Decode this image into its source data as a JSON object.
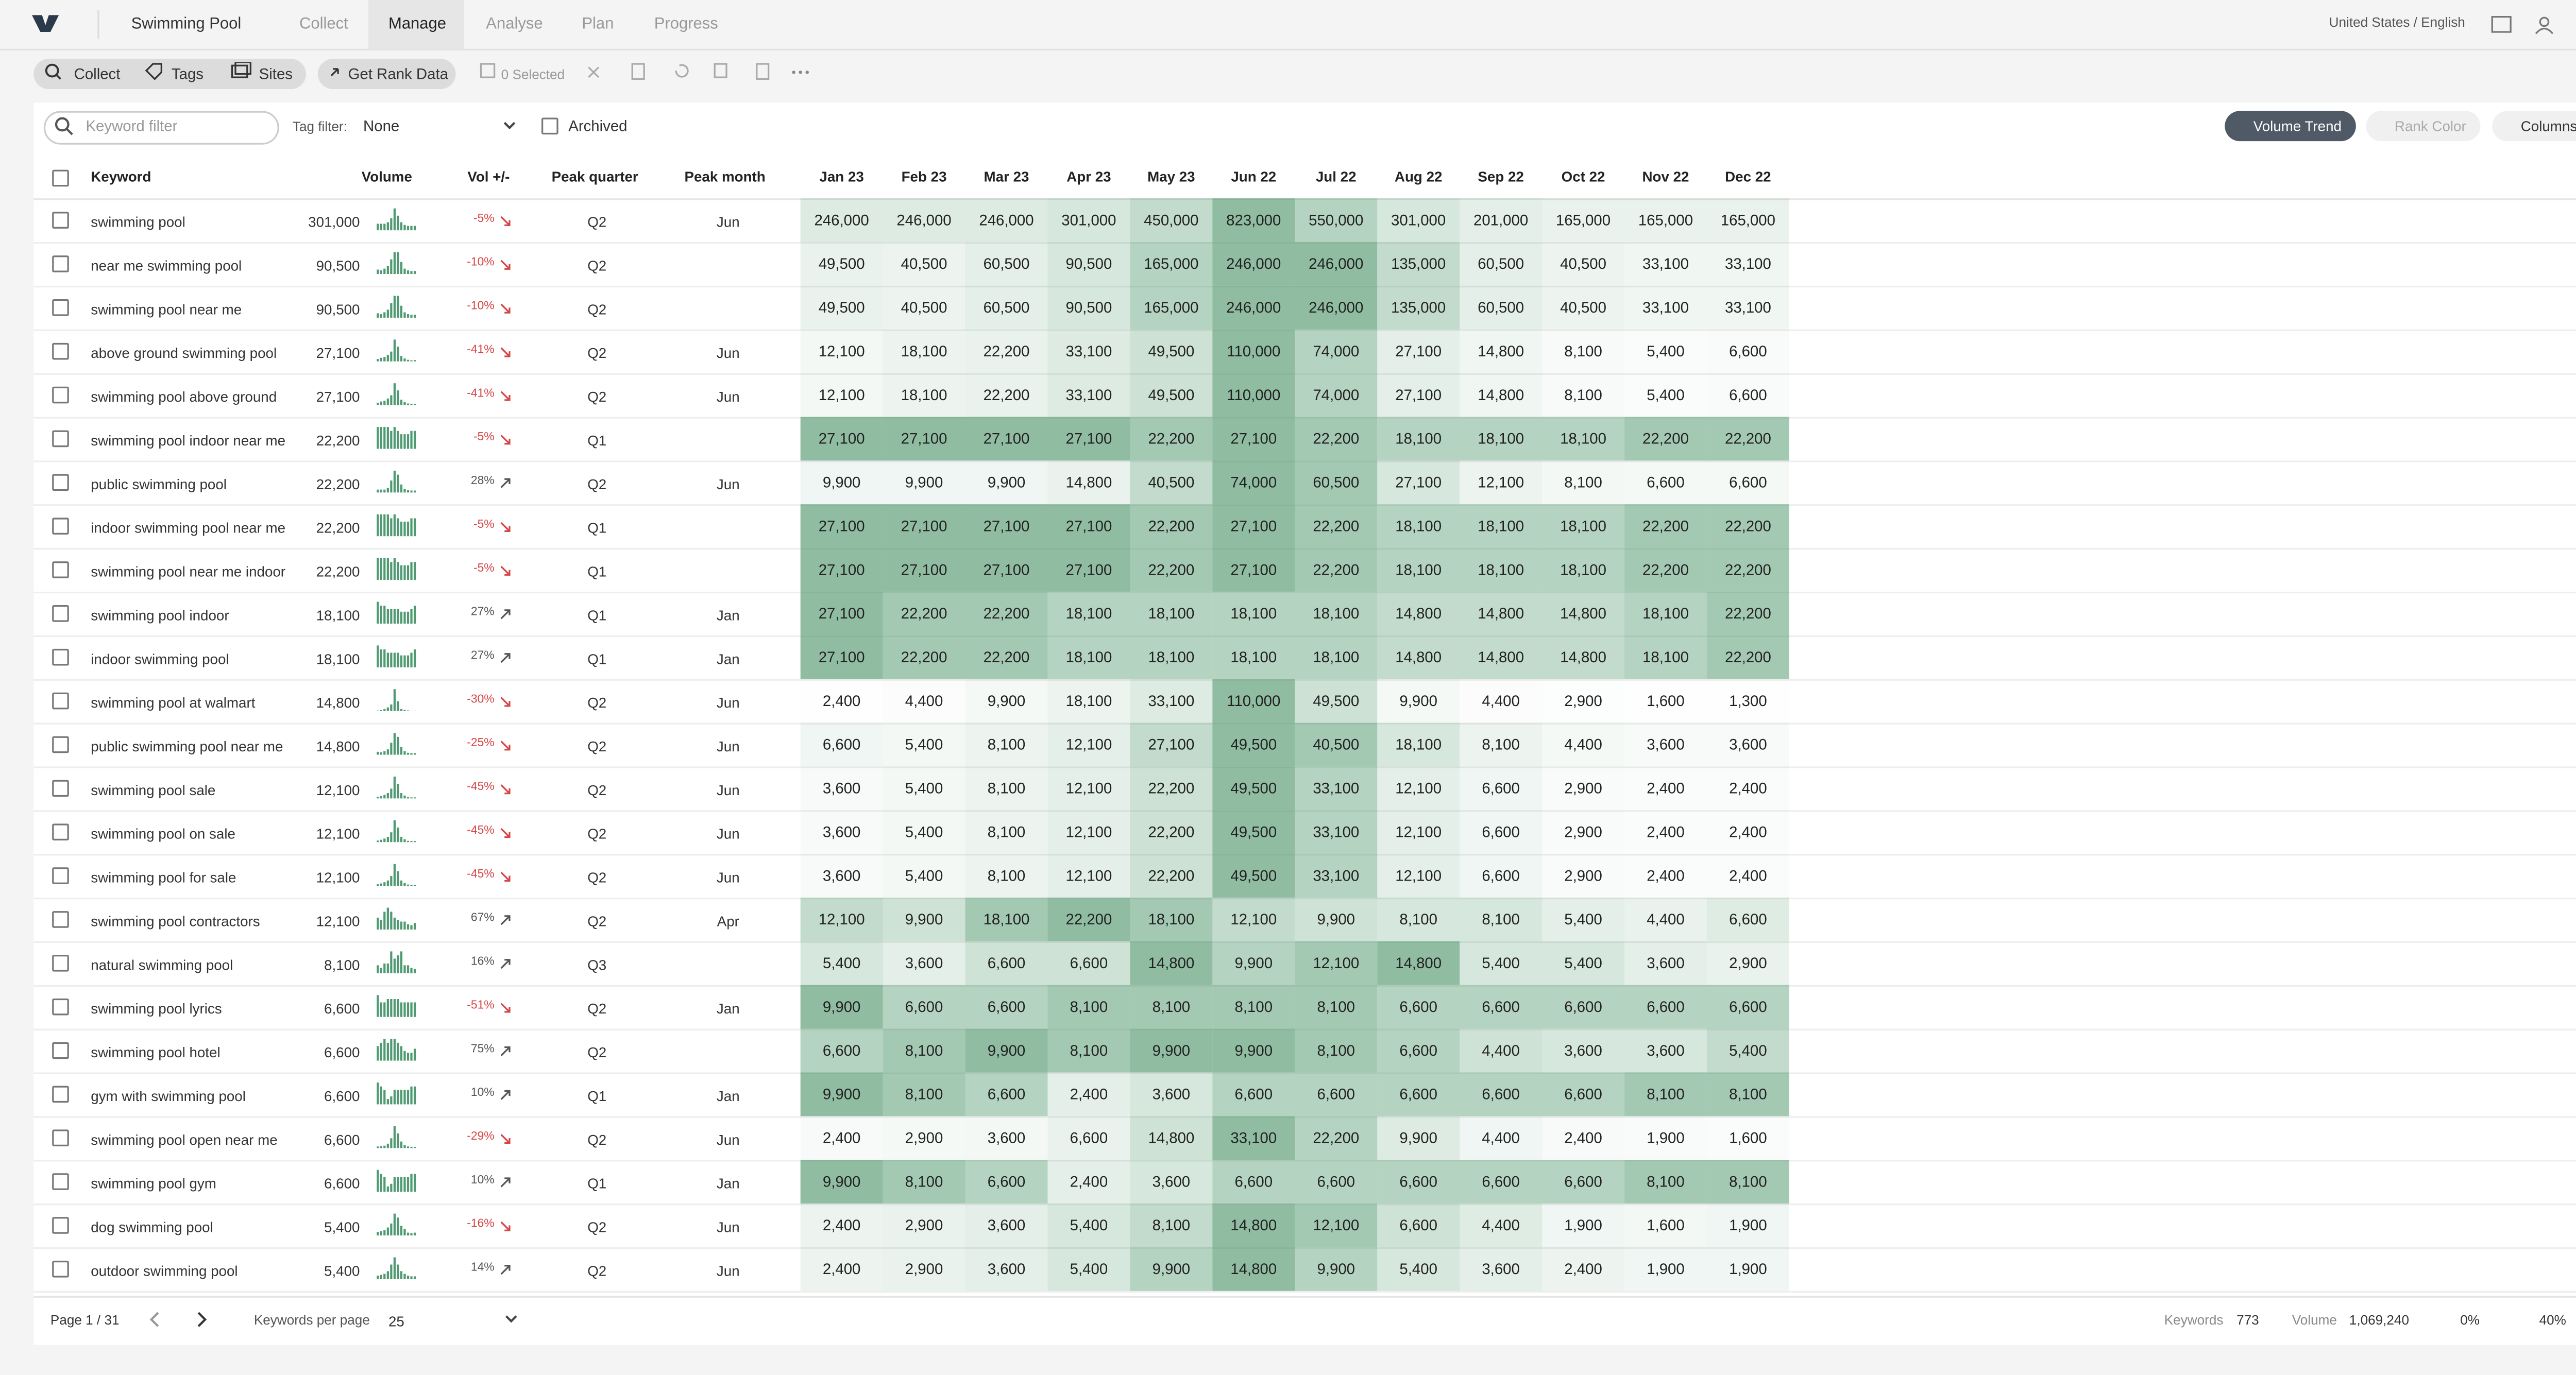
{
  "nav": {
    "project": "Swimming Pool",
    "tabs": [
      "Collect",
      "Manage",
      "Analyse",
      "Plan",
      "Progress"
    ],
    "locale": "United States / English"
  },
  "toolbar": {
    "buttons": [
      "Collect",
      "Tags",
      "Sites"
    ],
    "rank": "Get Rank Data",
    "selected": "0 Selected"
  },
  "filters": {
    "keyword_placeholder": "Keyword filter",
    "tag_label": "Tag filter:",
    "tag_value": "None",
    "archived": "Archived",
    "views": [
      "Volume Trend",
      "Rank Color",
      "Columns"
    ]
  },
  "table": {
    "headers": [
      "Keyword",
      "Volume",
      "Vol +/-",
      "Peak quarter",
      "Peak month",
      "Jan 23",
      "Feb 23",
      "Mar 23",
      "Apr 23",
      "May 23",
      "Jun 22",
      "Jul 22",
      "Aug 22",
      "Sep 22",
      "Oct 22",
      "Nov 22",
      "Dec 22"
    ],
    "rows": [
      [
        "swimming pool",
        "301,000",
        "-5%",
        "Q2",
        "Jun",
        "246,000",
        "246,000",
        "246,000",
        "301,000",
        "450,000",
        "823,000",
        "550,000",
        "301,000",
        "201,000",
        "165,000",
        "165,000",
        "165,000"
      ],
      [
        "near me swimming pool",
        "90,500",
        "-10%",
        "Q2",
        null,
        "49,500",
        "40,500",
        "60,500",
        "90,500",
        "165,000",
        "246,000",
        "246,000",
        "135,000",
        "60,500",
        "40,500",
        "33,100",
        "33,100"
      ],
      [
        "swimming pool near me",
        "90,500",
        "-10%",
        "Q2",
        null,
        "49,500",
        "40,500",
        "60,500",
        "90,500",
        "165,000",
        "246,000",
        "246,000",
        "135,000",
        "60,500",
        "40,500",
        "33,100",
        "33,100"
      ],
      [
        "above ground swimming pool",
        "27,100",
        "-41%",
        "Q2",
        "Jun",
        "12,100",
        "18,100",
        "22,200",
        "33,100",
        "49,500",
        "110,000",
        "74,000",
        "27,100",
        "14,800",
        "8,100",
        "5,400",
        "6,600"
      ],
      [
        "swimming pool above ground",
        "27,100",
        "-41%",
        "Q2",
        "Jun",
        "12,100",
        "18,100",
        "22,200",
        "33,100",
        "49,500",
        "110,000",
        "74,000",
        "27,100",
        "14,800",
        "8,100",
        "5,400",
        "6,600"
      ],
      [
        "swimming pool indoor near me",
        "22,200",
        "-5%",
        "Q1",
        null,
        "27,100",
        "27,100",
        "27,100",
        "27,100",
        "22,200",
        "27,100",
        "22,200",
        "18,100",
        "18,100",
        "18,100",
        "22,200",
        "22,200"
      ],
      [
        "public swimming pool",
        "22,200",
        "28%",
        "Q2",
        "Jun",
        "9,900",
        "9,900",
        "9,900",
        "14,800",
        "40,500",
        "74,000",
        "60,500",
        "27,100",
        "12,100",
        "8,100",
        "6,600",
        "6,600"
      ],
      [
        "indoor swimming pool near me",
        "22,200",
        "-5%",
        "Q1",
        null,
        "27,100",
        "27,100",
        "27,100",
        "27,100",
        "22,200",
        "27,100",
        "22,200",
        "18,100",
        "18,100",
        "18,100",
        "22,200",
        "22,200"
      ],
      [
        "swimming pool near me indoor",
        "22,200",
        "-5%",
        "Q1",
        null,
        "27,100",
        "27,100",
        "27,100",
        "27,100",
        "22,200",
        "27,100",
        "22,200",
        "18,100",
        "18,100",
        "18,100",
        "22,200",
        "22,200"
      ],
      [
        "swimming pool indoor",
        "18,100",
        "27%",
        "Q1",
        "Jan",
        "27,100",
        "22,200",
        "22,200",
        "18,100",
        "18,100",
        "18,100",
        "18,100",
        "14,800",
        "14,800",
        "14,800",
        "18,100",
        "22,200"
      ],
      [
        "indoor swimming pool",
        "18,100",
        "27%",
        "Q1",
        "Jan",
        "27,100",
        "22,200",
        "22,200",
        "18,100",
        "18,100",
        "18,100",
        "18,100",
        "14,800",
        "14,800",
        "14,800",
        "18,100",
        "22,200"
      ],
      [
        "swimming pool at walmart",
        "14,800",
        "-30%",
        "Q2",
        "Jun",
        "2,400",
        "4,400",
        "9,900",
        "18,100",
        "33,100",
        "110,000",
        "49,500",
        "9,900",
        "4,400",
        "2,900",
        "1,600",
        "1,300"
      ],
      [
        "public swimming pool near me",
        "14,800",
        "-25%",
        "Q2",
        "Jun",
        "6,600",
        "5,400",
        "8,100",
        "12,100",
        "27,100",
        "49,500",
        "40,500",
        "18,100",
        "8,100",
        "4,400",
        "3,600",
        "3,600"
      ],
      [
        "swimming pool sale",
        "12,100",
        "-45%",
        "Q2",
        "Jun",
        "3,600",
        "5,400",
        "8,100",
        "12,100",
        "22,200",
        "49,500",
        "33,100",
        "12,100",
        "6,600",
        "2,900",
        "2,400",
        "2,400"
      ],
      [
        "swimming pool on sale",
        "12,100",
        "-45%",
        "Q2",
        "Jun",
        "3,600",
        "5,400",
        "8,100",
        "12,100",
        "22,200",
        "49,500",
        "33,100",
        "12,100",
        "6,600",
        "2,900",
        "2,400",
        "2,400"
      ],
      [
        "swimming pool for sale",
        "12,100",
        "-45%",
        "Q2",
        "Jun",
        "3,600",
        "5,400",
        "8,100",
        "12,100",
        "22,200",
        "49,500",
        "33,100",
        "12,100",
        "6,600",
        "2,900",
        "2,400",
        "2,400"
      ],
      [
        "swimming pool contractors",
        "12,100",
        "67%",
        "Q2",
        "Apr",
        "12,100",
        "9,900",
        "18,100",
        "22,200",
        "18,100",
        "12,100",
        "9,900",
        "8,100",
        "8,100",
        "5,400",
        "4,400",
        "6,600"
      ],
      [
        "natural swimming pool",
        "8,100",
        "16%",
        "Q3",
        null,
        "5,400",
        "3,600",
        "6,600",
        "6,600",
        "14,800",
        "9,900",
        "12,100",
        "14,800",
        "5,400",
        "5,400",
        "3,600",
        "2,900"
      ],
      [
        "swimming pool lyrics",
        "6,600",
        "-51%",
        "Q2",
        "Jan",
        "9,900",
        "6,600",
        "6,600",
        "8,100",
        "8,100",
        "8,100",
        "8,100",
        "6,600",
        "6,600",
        "6,600",
        "6,600",
        "6,600"
      ],
      [
        "swimming pool hotel",
        "6,600",
        "75%",
        "Q2",
        null,
        "6,600",
        "8,100",
        "9,900",
        "8,100",
        "9,900",
        "9,900",
        "8,100",
        "6,600",
        "4,400",
        "3,600",
        "3,600",
        "5,400"
      ],
      [
        "gym with swimming pool",
        "6,600",
        "10%",
        "Q1",
        "Jan",
        "9,900",
        "8,100",
        "6,600",
        "2,400",
        "3,600",
        "6,600",
        "6,600",
        "6,600",
        "6,600",
        "6,600",
        "8,100",
        "8,100"
      ],
      [
        "swimming pool open near me",
        "6,600",
        "-29%",
        "Q2",
        "Jun",
        "2,400",
        "2,900",
        "3,600",
        "6,600",
        "14,800",
        "33,100",
        "22,200",
        "9,900",
        "4,400",
        "2,400",
        "1,900",
        "1,600"
      ],
      [
        "swimming pool gym",
        "6,600",
        "10%",
        "Q1",
        "Jan",
        "9,900",
        "8,100",
        "6,600",
        "2,400",
        "3,600",
        "6,600",
        "6,600",
        "6,600",
        "6,600",
        "6,600",
        "8,100",
        "8,100"
      ],
      [
        "dog swimming pool",
        "5,400",
        "-16%",
        "Q2",
        "Jun",
        "2,400",
        "2,900",
        "3,600",
        "5,400",
        "8,100",
        "14,800",
        "12,100",
        "6,600",
        "4,400",
        "1,900",
        "1,600",
        "1,900"
      ],
      [
        "outdoor swimming pool",
        "5,400",
        "14%",
        "Q2",
        "Jun",
        "2,400",
        "2,900",
        "3,600",
        "5,400",
        "9,900",
        "14,800",
        "9,900",
        "5,400",
        "3,600",
        "2,400",
        "1,900",
        "1,900"
      ]
    ]
  },
  "footer": {
    "page": "Page 1 / 31",
    "per_page_label": "Keywords per page",
    "per_page": "25",
    "keywords_label": "Keywords",
    "keywords": "773",
    "volume_label": "Volume",
    "volume": "1,069,240",
    "pct1": "0%",
    "pct2": "40%"
  }
}
